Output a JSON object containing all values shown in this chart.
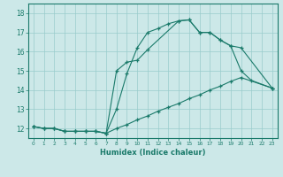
{
  "xlabel": "Humidex (Indice chaleur)",
  "bg_color": "#cce8e8",
  "line_color": "#1a7a6a",
  "xlim": [
    -0.5,
    23.5
  ],
  "ylim": [
    11.5,
    18.5
  ],
  "xticks": [
    0,
    1,
    2,
    3,
    4,
    5,
    6,
    7,
    8,
    9,
    10,
    11,
    12,
    13,
    14,
    15,
    16,
    17,
    18,
    19,
    20,
    21,
    22,
    23
  ],
  "yticks": [
    12,
    13,
    14,
    15,
    16,
    17,
    18
  ],
  "line1_x": [
    0,
    1,
    2,
    3,
    4,
    5,
    6,
    7,
    8,
    9,
    10,
    11,
    12,
    13,
    14,
    15,
    16,
    17,
    18,
    19,
    20,
    23
  ],
  "line1_y": [
    12.1,
    12.0,
    12.0,
    11.85,
    11.85,
    11.85,
    11.85,
    11.75,
    12.0,
    12.2,
    12.45,
    12.65,
    12.9,
    13.1,
    13.3,
    13.55,
    13.75,
    14.0,
    14.2,
    14.45,
    14.65,
    14.1
  ],
  "line2_x": [
    0,
    1,
    2,
    3,
    4,
    5,
    6,
    7,
    8,
    9,
    10,
    11,
    12,
    13,
    14,
    15,
    16,
    17,
    18,
    19,
    20,
    23
  ],
  "line2_y": [
    12.1,
    12.0,
    12.0,
    11.85,
    11.85,
    11.85,
    11.85,
    11.75,
    13.0,
    14.85,
    16.2,
    17.0,
    17.2,
    17.45,
    17.6,
    17.65,
    17.0,
    17.0,
    16.6,
    16.3,
    16.2,
    14.1
  ],
  "line3_x": [
    0,
    1,
    2,
    3,
    4,
    5,
    6,
    7,
    8,
    9,
    10,
    11,
    14,
    15,
    16,
    17,
    18,
    19,
    20,
    21,
    23
  ],
  "line3_y": [
    12.1,
    12.0,
    12.0,
    11.85,
    11.85,
    11.85,
    11.85,
    11.75,
    15.0,
    15.45,
    15.55,
    16.1,
    17.6,
    17.65,
    17.0,
    17.0,
    16.6,
    16.3,
    15.0,
    14.5,
    14.1
  ]
}
